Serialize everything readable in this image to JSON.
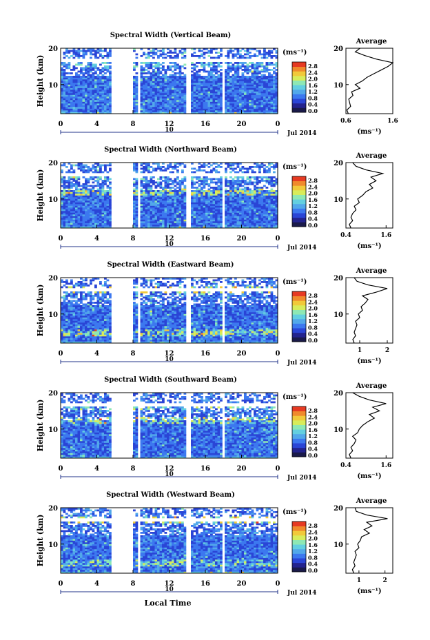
{
  "figure": {
    "xlabel": "Local Time",
    "date": "Jul 2014",
    "xticks": [
      "0",
      "4",
      "8",
      "12",
      "16",
      "20",
      "0"
    ],
    "midday_label": "10",
    "ylabel": "Height (km)",
    "yticks": [
      "20",
      "10"
    ],
    "colorbar_unit": "(ms⁻¹)",
    "colorbar_ticks": [
      "2.8",
      "2.4",
      "2.0",
      "1.6",
      "1.2",
      "0.8",
      "0.4",
      "0.0"
    ],
    "profile_title": "Average",
    "profile_unit": "(ms⁻¹)",
    "colors": {
      "colormap": [
        "#1a1a4a",
        "#23238e",
        "#2a45d6",
        "#3c78ef",
        "#52a8ea",
        "#63cfe0",
        "#8ee8b4",
        "#d8ec5a",
        "#f1c93a",
        "#f08a2c",
        "#e63a22"
      ],
      "background": "#ffffff",
      "axis": "#000000",
      "bracket": "#223388"
    }
  },
  "panels": [
    {
      "title": "Spectral Width (Vertical Beam)",
      "profile_xticks": [
        "0.6",
        "1.6"
      ]
    },
    {
      "title": "Spectral Width (Northward Beam)",
      "profile_xticks": [
        "0.4",
        "1.6"
      ]
    },
    {
      "title": "Spectral Width (Eastward Beam)",
      "profile_xticks": [
        "1",
        "2"
      ]
    },
    {
      "title": "Spectral Width (Southward Beam)",
      "profile_xticks": [
        "0.4",
        "1.6"
      ]
    },
    {
      "title": "Spectral Width (Westward Beam)",
      "profile_xticks": [
        "1",
        "2"
      ]
    }
  ],
  "chart_data": [
    {
      "type": "heatmap",
      "title": "Spectral Width (Vertical Beam)",
      "xlabel": "Local Time",
      "ylabel": "Height (km)",
      "colorbar_label": "(ms⁻¹)",
      "xlim": [
        0,
        24
      ],
      "ylim": [
        2,
        20
      ],
      "clim": [
        0,
        3.0
      ],
      "data_gaps_hours": [
        [
          5.5,
          8.0
        ],
        [
          8.6,
          8.8
        ],
        [
          14.0,
          14.3
        ],
        [
          17.8,
          18.1
        ]
      ],
      "features": [
        {
          "height_km": 15.5,
          "width_ms": 1.8
        },
        {
          "height_km": 5.0,
          "width_ms": 1.2
        }
      ]
    },
    {
      "type": "line",
      "title": "Average",
      "xlabel": "(ms⁻¹)",
      "ylabel": "Height (km)",
      "xlim": [
        0.6,
        1.6
      ],
      "ylim": [
        2,
        20
      ],
      "x": [
        0.65,
        0.62,
        0.7,
        0.68,
        0.66,
        0.75,
        0.72,
        0.9,
        0.8,
        0.95,
        1.05,
        1.2,
        1.35,
        1.5,
        1.6,
        1.25,
        1.0,
        0.8,
        0.9
      ],
      "y": [
        2,
        3,
        4,
        5,
        6,
        7,
        8,
        9,
        10,
        11,
        12,
        13,
        14,
        15,
        16,
        17,
        18,
        19,
        20
      ]
    },
    {
      "type": "heatmap",
      "title": "Spectral Width (Northward Beam)",
      "xlabel": "Local Time",
      "ylabel": "Height (km)",
      "colorbar_label": "(ms⁻¹)",
      "xlim": [
        0,
        24
      ],
      "ylim": [
        2,
        20
      ],
      "clim": [
        0,
        3.0
      ],
      "data_gaps_hours": [
        [
          5.5,
          8.0
        ],
        [
          8.6,
          8.8
        ],
        [
          14.0,
          14.3
        ],
        [
          17.8,
          18.1
        ]
      ],
      "features": [
        {
          "height_km": 12.0,
          "width_ms": 2.4
        },
        {
          "height_km": 16.0,
          "width_ms": 2.0
        }
      ]
    },
    {
      "type": "line",
      "title": "Average",
      "xlabel": "(ms⁻¹)",
      "ylabel": "Height (km)",
      "xlim": [
        0.4,
        1.8
      ],
      "ylim": [
        2,
        20
      ],
      "x": [
        0.55,
        0.5,
        0.6,
        0.55,
        0.6,
        0.7,
        0.65,
        0.8,
        0.75,
        0.9,
        1.0,
        1.2,
        1.1,
        1.3,
        1.15,
        1.5,
        1.0,
        0.7,
        0.6
      ],
      "y": [
        2,
        3,
        4,
        5,
        6,
        7,
        8,
        9,
        10,
        11,
        12,
        13,
        14,
        15,
        16,
        17,
        18,
        19,
        20
      ]
    },
    {
      "type": "heatmap",
      "title": "Spectral Width (Eastward Beam)",
      "xlabel": "Local Time",
      "ylabel": "Height (km)",
      "colorbar_label": "(ms⁻¹)",
      "xlim": [
        0,
        24
      ],
      "ylim": [
        2,
        20
      ],
      "clim": [
        0,
        3.0
      ],
      "data_gaps_hours": [
        [
          5.5,
          8.0
        ],
        [
          8.6,
          8.8
        ],
        [
          14.0,
          14.3
        ],
        [
          17.8,
          18.1
        ]
      ],
      "features": [
        {
          "height_km": 16.5,
          "width_ms": 2.6
        },
        {
          "height_km": 5.0,
          "width_ms": 2.4
        }
      ]
    },
    {
      "type": "line",
      "title": "Average",
      "xlabel": "(ms⁻¹)",
      "ylabel": "Height (km)",
      "xlim": [
        0.5,
        2.2
      ],
      "ylim": [
        2,
        20
      ],
      "x": [
        0.8,
        0.75,
        0.85,
        0.8,
        0.85,
        0.9,
        0.85,
        1.0,
        0.95,
        1.1,
        1.05,
        1.2,
        1.3,
        1.1,
        1.6,
        2.0,
        1.3,
        0.9,
        0.8
      ],
      "y": [
        2,
        3,
        4,
        5,
        6,
        7,
        8,
        9,
        10,
        11,
        12,
        13,
        14,
        15,
        16,
        17,
        18,
        19,
        20
      ]
    },
    {
      "type": "heatmap",
      "title": "Spectral Width (Southward Beam)",
      "xlabel": "Local Time",
      "ylabel": "Height (km)",
      "colorbar_label": "(ms⁻¹)",
      "xlim": [
        0,
        24
      ],
      "ylim": [
        2,
        20
      ],
      "clim": [
        0,
        3.0
      ],
      "data_gaps_hours": [
        [
          5.5,
          8.0
        ],
        [
          8.6,
          8.8
        ],
        [
          14.0,
          14.3
        ],
        [
          17.8,
          18.1
        ]
      ],
      "features": [
        {
          "height_km": 12.5,
          "width_ms": 2.4
        },
        {
          "height_km": 16.0,
          "width_ms": 2.2
        }
      ]
    },
    {
      "type": "line",
      "title": "Average",
      "xlabel": "(ms⁻¹)",
      "ylabel": "Height (km)",
      "xlim": [
        0.4,
        1.8
      ],
      "ylim": [
        2,
        20
      ],
      "x": [
        0.55,
        0.5,
        0.6,
        0.55,
        0.65,
        0.7,
        0.6,
        0.75,
        0.8,
        0.9,
        1.05,
        1.25,
        1.1,
        1.4,
        1.2,
        1.6,
        1.1,
        0.8,
        0.6
      ],
      "y": [
        2,
        3,
        4,
        5,
        6,
        7,
        8,
        9,
        10,
        11,
        12,
        13,
        14,
        15,
        16,
        17,
        18,
        19,
        20
      ]
    },
    {
      "type": "heatmap",
      "title": "Spectral Width (Westward Beam)",
      "xlabel": "Local Time",
      "ylabel": "Height (km)",
      "colorbar_label": "(ms⁻¹)",
      "xlim": [
        0,
        24
      ],
      "ylim": [
        2,
        20
      ],
      "clim": [
        0,
        3.0
      ],
      "data_gaps_hours": [
        [
          5.5,
          8.0
        ],
        [
          8.6,
          8.8
        ],
        [
          14.0,
          14.3
        ],
        [
          17.8,
          18.1
        ]
      ],
      "features": [
        {
          "height_km": 16.5,
          "width_ms": 2.6
        },
        {
          "height_km": 5.0,
          "width_ms": 2.2
        }
      ]
    },
    {
      "type": "line",
      "title": "Average",
      "xlabel": "(ms⁻¹)",
      "ylabel": "Height (km)",
      "xlim": [
        0.5,
        2.3
      ],
      "ylim": [
        2,
        20
      ],
      "x": [
        0.8,
        0.75,
        0.85,
        0.8,
        0.85,
        0.9,
        0.85,
        1.0,
        0.95,
        1.05,
        1.1,
        1.4,
        1.2,
        1.5,
        1.3,
        2.1,
        1.3,
        0.9,
        0.85
      ],
      "y": [
        2,
        3,
        4,
        5,
        6,
        7,
        8,
        9,
        10,
        11,
        12,
        13,
        14,
        15,
        16,
        17,
        18,
        19,
        20
      ]
    }
  ]
}
